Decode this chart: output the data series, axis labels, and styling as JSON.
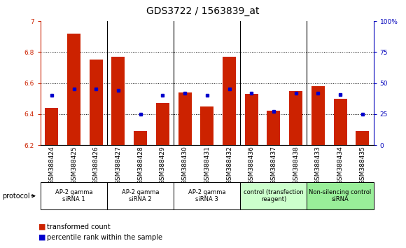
{
  "title": "GDS3722 / 1563839_at",
  "samples": [
    "GSM388424",
    "GSM388425",
    "GSM388426",
    "GSM388427",
    "GSM388428",
    "GSM388429",
    "GSM388430",
    "GSM388431",
    "GSM388432",
    "GSM388436",
    "GSM388437",
    "GSM388438",
    "GSM388433",
    "GSM388434",
    "GSM388435"
  ],
  "bar_values": [
    6.44,
    6.92,
    6.75,
    6.77,
    6.29,
    6.47,
    6.54,
    6.45,
    6.77,
    6.53,
    6.42,
    6.55,
    6.58,
    6.5,
    6.29
  ],
  "bar_bottom": 6.2,
  "blue_dot_pct": [
    40,
    45,
    45,
    44,
    25,
    40,
    42,
    40,
    45,
    42,
    27,
    42,
    42,
    41,
    25
  ],
  "bar_color": "#cc2200",
  "blue_color": "#0000cc",
  "ylim_left": [
    6.2,
    7.0
  ],
  "ylim_right": [
    0,
    100
  ],
  "yticks_left": [
    6.2,
    6.4,
    6.6,
    6.8,
    7.0
  ],
  "ytick_labels_left": [
    "6.2",
    "6.4",
    "6.6",
    "6.8",
    "7"
  ],
  "yticks_right": [
    0,
    25,
    50,
    75,
    100
  ],
  "ytick_labels_right": [
    "0",
    "25",
    "50",
    "75",
    "100%"
  ],
  "grid_values": [
    6.4,
    6.6,
    6.8
  ],
  "groups": [
    {
      "label": "AP-2 gamma\nsiRNA 1",
      "start": 0,
      "end": 3
    },
    {
      "label": "AP-2 gamma\nsiRNA 2",
      "start": 3,
      "end": 6
    },
    {
      "label": "AP-2 gamma\nsiRNA 3",
      "start": 6,
      "end": 9
    },
    {
      "label": "control (transfection\nreagent)",
      "start": 9,
      "end": 12
    },
    {
      "label": "Non-silencing control\nsiRNA",
      "start": 12,
      "end": 15
    }
  ],
  "group_box_colors": [
    "#ffffff",
    "#ffffff",
    "#ffffff",
    "#ccffcc",
    "#99ee99"
  ],
  "protocol_label": "protocol",
  "legend_items": [
    {
      "color": "#cc2200",
      "label": "transformed count"
    },
    {
      "color": "#0000cc",
      "label": "percentile rank within the sample"
    }
  ],
  "bar_width": 0.6,
  "title_fontsize": 10,
  "tick_fontsize": 6.5,
  "group_label_fontsize": 6,
  "background_color": "#ffffff"
}
